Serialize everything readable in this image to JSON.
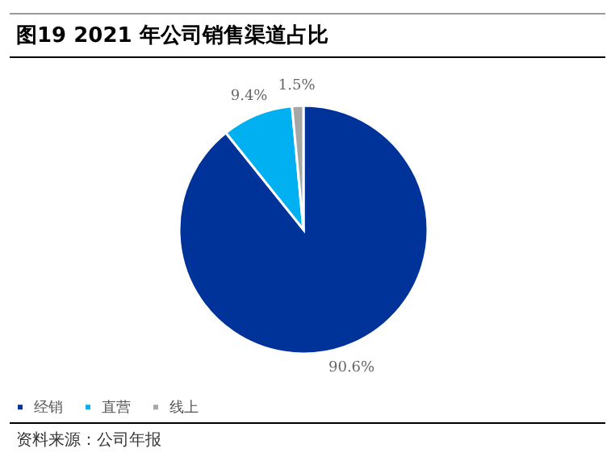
{
  "chart_data": {
    "type": "pie",
    "title": "图19 2021 年公司销售渠道占比",
    "categories": [
      "经销",
      "直营",
      "线上"
    ],
    "values": [
      90.6,
      9.4,
      1.5
    ],
    "colors": [
      "#003399",
      "#00b0f0",
      "#a6a6a6"
    ],
    "value_labels": [
      "90.6%",
      "9.4%",
      "1.5%"
    ],
    "legend": "bottom",
    "annotations": [
      "资料来源：公司年报"
    ]
  }
}
